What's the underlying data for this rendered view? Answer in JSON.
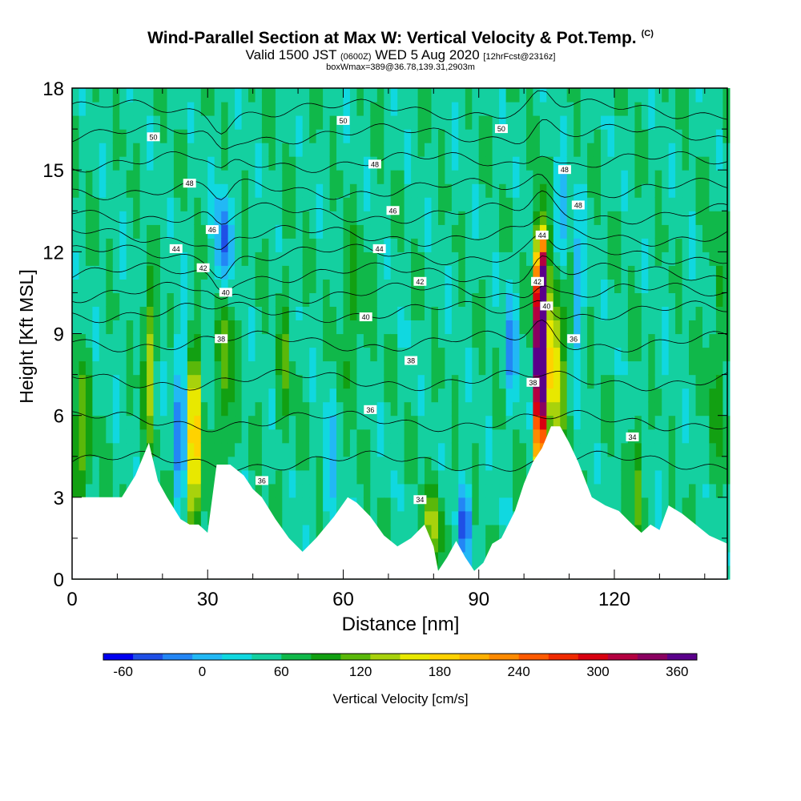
{
  "header": {
    "title": "Wind-Parallel Section at Max W: Vertical Velocity & Pot.Temp.",
    "copyright": "(C)",
    "valid_prefix": "Valid 1500 JST",
    "valid_utc": "(0600Z)",
    "valid_date": "WED 5 Aug 2020",
    "forecast": "[12hrFcst@2316z]",
    "box_info": "boxWmax=389@36.78,139.31,2903m"
  },
  "chart_data": {
    "type": "heatmap",
    "xlabel": "Distance [nm]",
    "ylabel": "Height [Kft MSL]",
    "xlim": [
      0,
      145
    ],
    "ylim": [
      0,
      18
    ],
    "xticks": [
      0,
      30,
      60,
      90,
      120
    ],
    "yticks": [
      0,
      3,
      6,
      9,
      12,
      15,
      18
    ],
    "grid": false,
    "colorbar": {
      "label": "Vertical Velocity [cm/s]",
      "min": -75,
      "max": 375,
      "step": 15,
      "tick_values": [
        -60,
        0,
        60,
        120,
        180,
        240,
        300,
        360
      ],
      "colors": [
        "#0000f0",
        "#1f4fe6",
        "#2386f5",
        "#22b8f5",
        "#10d8e0",
        "#14d0a0",
        "#10b84a",
        "#12a012",
        "#5ab80a",
        "#a8d20c",
        "#e8e800",
        "#ffd200",
        "#ffb000",
        "#ff8a00",
        "#ff5a00",
        "#f02a00",
        "#d80010",
        "#b40040",
        "#8a0060",
        "#5a008a"
      ]
    },
    "theta_contour_labels": [
      {
        "x": 18,
        "y": 16.2,
        "label": "50"
      },
      {
        "x": 60,
        "y": 16.8,
        "label": "50"
      },
      {
        "x": 95,
        "y": 16.5,
        "label": "50"
      },
      {
        "x": 26,
        "y": 14.5,
        "label": "48"
      },
      {
        "x": 67,
        "y": 15.2,
        "label": "48"
      },
      {
        "x": 109,
        "y": 15.0,
        "label": "48"
      },
      {
        "x": 112,
        "y": 13.7,
        "label": "48"
      },
      {
        "x": 31,
        "y": 12.8,
        "label": "46"
      },
      {
        "x": 71,
        "y": 13.5,
        "label": "46"
      },
      {
        "x": 23,
        "y": 12.1,
        "label": "44"
      },
      {
        "x": 68,
        "y": 12.1,
        "label": "44"
      },
      {
        "x": 104,
        "y": 12.6,
        "label": "44"
      },
      {
        "x": 29,
        "y": 11.4,
        "label": "42"
      },
      {
        "x": 77,
        "y": 10.9,
        "label": "42"
      },
      {
        "x": 103,
        "y": 10.9,
        "label": "42"
      },
      {
        "x": 34,
        "y": 10.5,
        "label": "40"
      },
      {
        "x": 65,
        "y": 9.6,
        "label": "40"
      },
      {
        "x": 105,
        "y": 10.0,
        "label": "40"
      },
      {
        "x": 33,
        "y": 8.8,
        "label": "38"
      },
      {
        "x": 75,
        "y": 8.0,
        "label": "38"
      },
      {
        "x": 111,
        "y": 8.8,
        "label": "36"
      },
      {
        "x": 66,
        "y": 6.2,
        "label": "36"
      },
      {
        "x": 102,
        "y": 7.2,
        "label": "38"
      },
      {
        "x": 42,
        "y": 3.6,
        "label": "36"
      },
      {
        "x": 77,
        "y": 2.9,
        "label": "34"
      },
      {
        "x": 124,
        "y": 5.2,
        "label": "34"
      }
    ],
    "terrain_height": {
      "x": [
        0,
        6,
        11,
        14,
        17,
        19,
        21,
        24,
        26,
        28,
        30,
        32,
        35,
        38,
        40,
        42,
        45,
        48,
        51,
        54,
        58,
        61,
        63,
        66,
        69,
        72,
        75,
        78,
        80,
        81,
        83,
        85,
        87,
        89,
        91,
        93,
        95,
        98,
        100,
        102,
        104,
        106,
        108,
        110,
        112,
        115,
        118,
        121,
        124,
        126,
        128,
        130,
        132,
        135,
        138,
        141,
        145
      ],
      "y": [
        3.0,
        3.0,
        3.0,
        3.8,
        5.0,
        3.6,
        3.0,
        2.2,
        2.0,
        2.0,
        1.7,
        4.2,
        4.2,
        3.8,
        3.3,
        3.0,
        2.2,
        1.5,
        1.0,
        1.5,
        2.3,
        3.0,
        2.8,
        2.3,
        1.6,
        1.2,
        1.5,
        2.0,
        1.2,
        0.3,
        0.8,
        1.4,
        0.8,
        0.3,
        0.6,
        1.3,
        1.5,
        2.5,
        3.5,
        4.3,
        4.8,
        5.6,
        5.6,
        5.0,
        4.3,
        3.0,
        2.7,
        2.5,
        2.0,
        1.7,
        2.0,
        1.8,
        2.7,
        2.4,
        2.0,
        1.6,
        1.3
      ]
    }
  }
}
